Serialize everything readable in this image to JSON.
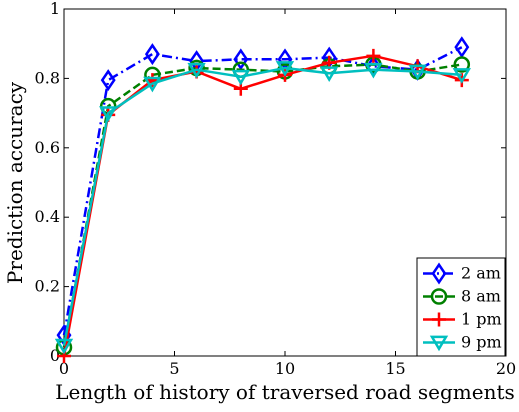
{
  "chart_data": {
    "type": "line",
    "xlabel": "Length of history of traversed road segments",
    "ylabel": "Prediction accuracy",
    "xlim": [
      0,
      20
    ],
    "ylim": [
      0,
      1
    ],
    "x_ticks": [
      0,
      5,
      10,
      15,
      20
    ],
    "x_tick_labels": [
      "0",
      "5",
      "10",
      "15",
      "20"
    ],
    "y_ticks": [
      0,
      0.2,
      0.4,
      0.6,
      0.8,
      1
    ],
    "y_tick_labels": [
      "0",
      "0.2",
      "0.4",
      "0.6",
      "0.8",
      "1"
    ],
    "grid": false,
    "legend_position": "bottom-right",
    "x": [
      0,
      2,
      4,
      6,
      8,
      10,
      12,
      14,
      16,
      18
    ],
    "series": [
      {
        "name": "2 am",
        "color": "#0000ff",
        "line_style": "dash-dot",
        "marker": "diamond",
        "values": [
          0.06,
          0.795,
          0.87,
          0.85,
          0.855,
          0.855,
          0.86,
          0.835,
          0.825,
          0.89
        ]
      },
      {
        "name": "8 am",
        "color": "#008000",
        "line_style": "dashed",
        "marker": "circle",
        "values": [
          0.025,
          0.72,
          0.81,
          0.83,
          0.825,
          0.82,
          0.835,
          0.84,
          0.82,
          0.84
        ]
      },
      {
        "name": "1 pm",
        "color": "#ff0000",
        "line_style": "solid",
        "marker": "plus",
        "values": [
          0.0,
          0.695,
          0.795,
          0.82,
          0.77,
          0.81,
          0.845,
          0.865,
          0.835,
          0.795
        ]
      },
      {
        "name": "9 pm",
        "color": "#00bfbf",
        "line_style": "solid",
        "marker": "triangle-down",
        "values": [
          0.03,
          0.7,
          0.785,
          0.825,
          0.805,
          0.83,
          0.815,
          0.825,
          0.82,
          0.81
        ]
      }
    ]
  }
}
